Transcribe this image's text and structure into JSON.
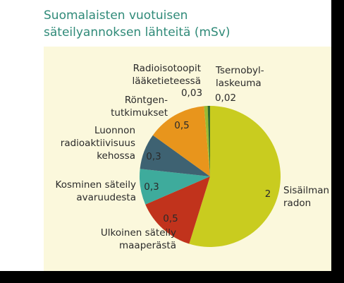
{
  "chart_data": {
    "type": "pie",
    "title": "Suomalaisten vuotuisen\nsäteilyannoksen lähteitä (mSv)",
    "categories": [
      "Sisäilman\nradon",
      "Ulkoinen säteily\nmaaperästä",
      "Kosminen säteily\navaruudesta",
      "Luonnon\nradioaktiivisuus\nkehossa",
      "Röntgen-\ntutkimukset",
      "Radioisotoopit\nlääketieteessä",
      "Tsernobyl-\nlaskeuma"
    ],
    "values": [
      2,
      0.5,
      0.3,
      0.3,
      0.5,
      0.03,
      0.02
    ],
    "value_labels": [
      "2",
      "0,5",
      "0,3",
      "0,3",
      "0,5",
      "0,03",
      "0,02"
    ],
    "colors": [
      "#c9cc1f",
      "#c1331c",
      "#3eab9c",
      "#3e6272",
      "#e8951c",
      "#9bbb33",
      "#2f6b30"
    ]
  }
}
